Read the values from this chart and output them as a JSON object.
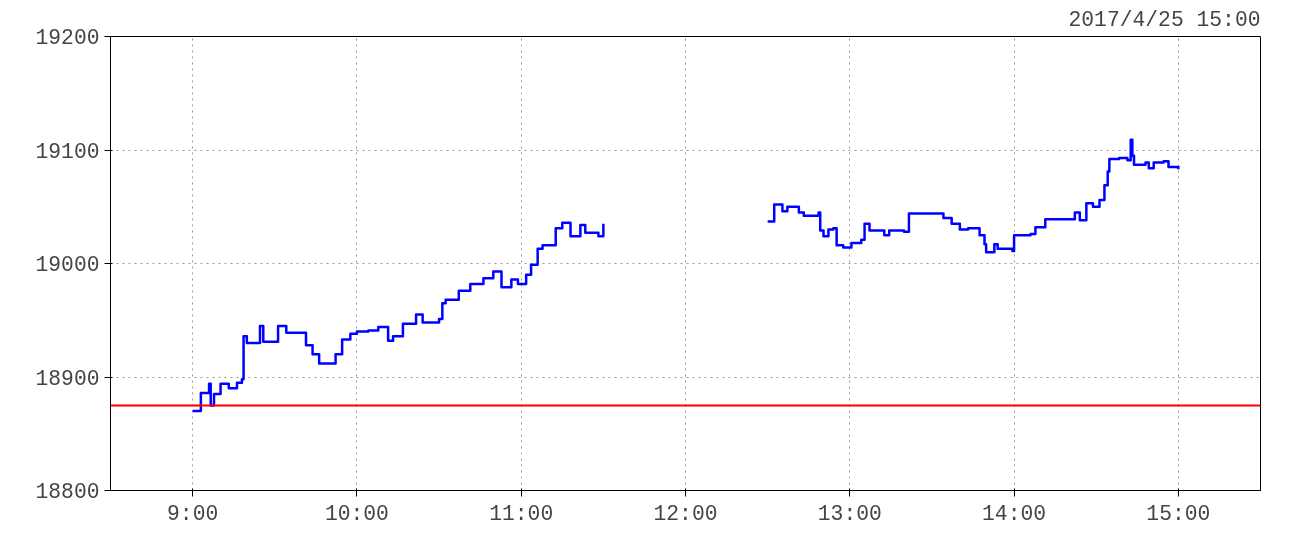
{
  "chart_data": {
    "type": "step",
    "subtitle": "2017/4/25 15:00",
    "xlim": [
      8.5,
      15.5
    ],
    "xticks": [
      {
        "value": 9,
        "label": "9:00"
      },
      {
        "value": 10,
        "label": "10:00"
      },
      {
        "value": 11,
        "label": "11:00"
      },
      {
        "value": 12,
        "label": "12:00"
      },
      {
        "value": 13,
        "label": "13:00"
      },
      {
        "value": 14,
        "label": "14:00"
      },
      {
        "value": 15,
        "label": "15:00"
      }
    ],
    "ylim": [
      18800,
      19200
    ],
    "yticks": [
      18800,
      18900,
      19000,
      19100,
      19200
    ],
    "grid": true,
    "line_style": "solid",
    "marker": "none",
    "ref_lines": [
      {
        "axis": "y",
        "value": 18875,
        "color": "#ff0000"
      }
    ],
    "series": [
      {
        "color": "#0000ff",
        "x": [
          9.0,
          9.05,
          9.1,
          9.11,
          9.13,
          9.17,
          9.22,
          9.27,
          9.3,
          9.31,
          9.33,
          9.41,
          9.43,
          9.49,
          9.52,
          9.57,
          9.67,
          9.69,
          9.73,
          9.77,
          9.83,
          9.87,
          9.91,
          9.96,
          10.0,
          10.07,
          10.13,
          10.19,
          10.22,
          10.28,
          10.36,
          10.4,
          10.5,
          10.52,
          10.54,
          10.58,
          10.62,
          10.69,
          10.77,
          10.83,
          10.88,
          10.94,
          10.98,
          11.03,
          11.06,
          11.1,
          11.13,
          11.19,
          11.21,
          11.25,
          11.28,
          11.3,
          11.35,
          11.36,
          11.39,
          11.47,
          11.5,
          12.0,
          12.5,
          12.54,
          12.59,
          12.62,
          12.69,
          12.72,
          12.81,
          12.82,
          12.84,
          12.87,
          12.9,
          12.92,
          12.96,
          13.01,
          13.07,
          13.09,
          13.12,
          13.19,
          13.21,
          13.24,
          13.33,
          13.36,
          13.51,
          13.57,
          13.62,
          13.67,
          13.72,
          13.79,
          13.82,
          13.83,
          13.88,
          13.9,
          13.99,
          14.0,
          14.1,
          14.13,
          14.19,
          14.3,
          14.37,
          14.4,
          14.44,
          14.48,
          14.52,
          14.55,
          14.57,
          14.58,
          14.64,
          14.69,
          14.71,
          14.72,
          14.73,
          14.8,
          14.82,
          14.85,
          14.91,
          14.94,
          15.0
        ],
        "values": [
          18870,
          18886,
          18894,
          18875,
          18885,
          18894,
          18890,
          18895,
          18898,
          18936,
          18930,
          18945,
          18931,
          18931,
          18945,
          18939,
          18939,
          18928,
          18920,
          18912,
          18912,
          18920,
          18933,
          18938,
          18940,
          18941,
          18944,
          18932,
          18936,
          18947,
          18955,
          18948,
          18951,
          18965,
          18968,
          18968,
          18976,
          18982,
          18987,
          18993,
          18979,
          18986,
          18982,
          18990,
          18999,
          19013,
          19016,
          19016,
          19031,
          19036,
          19036,
          19024,
          19024,
          19034,
          19027,
          19024,
          19035,
          null,
          19037,
          19052,
          19046,
          19050,
          19045,
          19042,
          19045,
          19029,
          19024,
          19030,
          19031,
          19016,
          19014,
          19018,
          19021,
          19035,
          19029,
          19029,
          19025,
          19029,
          19028,
          19044,
          19044,
          19040,
          19035,
          19030,
          19031,
          19025,
          19017,
          19010,
          19017,
          19013,
          19011,
          19025,
          19026,
          19032,
          19039,
          19039,
          19045,
          19038,
          19053,
          19050,
          19056,
          19069,
          19081,
          19092,
          19093,
          19091,
          19109,
          19095,
          19087,
          19089,
          19084,
          19089,
          19090,
          19085,
          19083
        ]
      }
    ]
  }
}
